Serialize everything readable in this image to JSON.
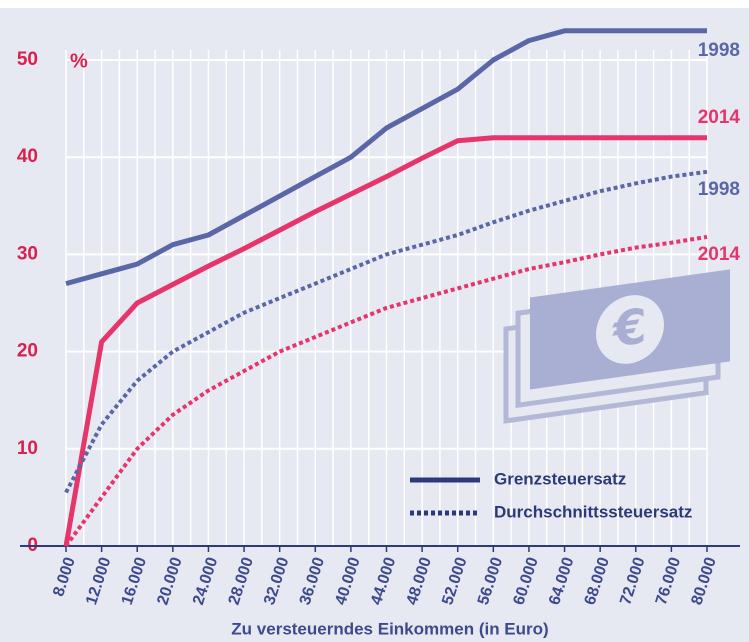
{
  "chart_data": {
    "type": "line",
    "y_unit": "%",
    "x_label": "Zu versteuerndes Einkommen (in Euro)",
    "x": [
      8000,
      12000,
      16000,
      20000,
      24000,
      28000,
      32000,
      36000,
      40000,
      44000,
      48000,
      52000,
      56000,
      60000,
      64000,
      68000,
      72000,
      76000,
      80000
    ],
    "xlim": [
      8000,
      80000
    ],
    "xticks": [
      {
        "value": 8000,
        "label": "8.000"
      },
      {
        "value": 12000,
        "label": "12.000"
      },
      {
        "value": 16000,
        "label": "16.000"
      },
      {
        "value": 20000,
        "label": "20.000"
      },
      {
        "value": 24000,
        "label": "24.000"
      },
      {
        "value": 28000,
        "label": "28.000"
      },
      {
        "value": 32000,
        "label": "32.000"
      },
      {
        "value": 36000,
        "label": "36.000"
      },
      {
        "value": 40000,
        "label": "40.000"
      },
      {
        "value": 44000,
        "label": "44.000"
      },
      {
        "value": 48000,
        "label": "48.000"
      },
      {
        "value": 52000,
        "label": "52.000"
      },
      {
        "value": 56000,
        "label": "56.000"
      },
      {
        "value": 60000,
        "label": "60.000"
      },
      {
        "value": 64000,
        "label": "64.000"
      },
      {
        "value": 68000,
        "label": "68.000"
      },
      {
        "value": 72000,
        "label": "72.000"
      },
      {
        "value": 76000,
        "label": "76.000"
      },
      {
        "value": 80000,
        "label": "80.000"
      }
    ],
    "x_minor_ticks": [
      10000,
      14000,
      18000,
      22000,
      26000,
      30000,
      34000,
      38000,
      42000,
      46000,
      50000,
      54000,
      58000,
      62000,
      66000,
      70000,
      74000,
      78000
    ],
    "ylim": [
      0,
      50
    ],
    "yticks": [
      0,
      10,
      20,
      30,
      40,
      50
    ],
    "grid": true,
    "legend": [
      {
        "label": "Grenzsteuersatz",
        "style": "solid"
      },
      {
        "label": "Durchschnittssteuersatz",
        "style": "dotted"
      }
    ],
    "series": [
      {
        "name": "1998",
        "color": "#5a67a6",
        "style": "solid",
        "values": [
          27,
          28,
          29,
          31,
          32,
          34,
          36,
          38,
          40,
          43,
          45,
          47,
          50,
          52,
          53,
          53,
          53,
          53,
          53
        ]
      },
      {
        "name": "2014",
        "color": "#e5356a",
        "style": "solid",
        "values": [
          0,
          21,
          25,
          26.9,
          28.8,
          30.6,
          32.5,
          34.4,
          36.2,
          38,
          39.9,
          41.7,
          42,
          42,
          42,
          42,
          42,
          42,
          42
        ]
      },
      {
        "name": "1998",
        "color": "#5a67a6",
        "style": "dotted",
        "values": [
          5.5,
          12.5,
          17,
          20,
          22,
          24,
          25.5,
          27,
          28.5,
          30,
          31,
          32,
          33.3,
          34.5,
          35.5,
          36.5,
          37.3,
          38,
          38.5
        ]
      },
      {
        "name": "2014",
        "color": "#e5356a",
        "style": "dotted",
        "values": [
          0,
          5,
          10,
          13.5,
          16,
          18,
          20,
          21.5,
          23,
          24.5,
          25.5,
          26.5,
          27.5,
          28.5,
          29.2,
          30,
          30.7,
          31.2,
          31.8
        ]
      }
    ]
  }
}
